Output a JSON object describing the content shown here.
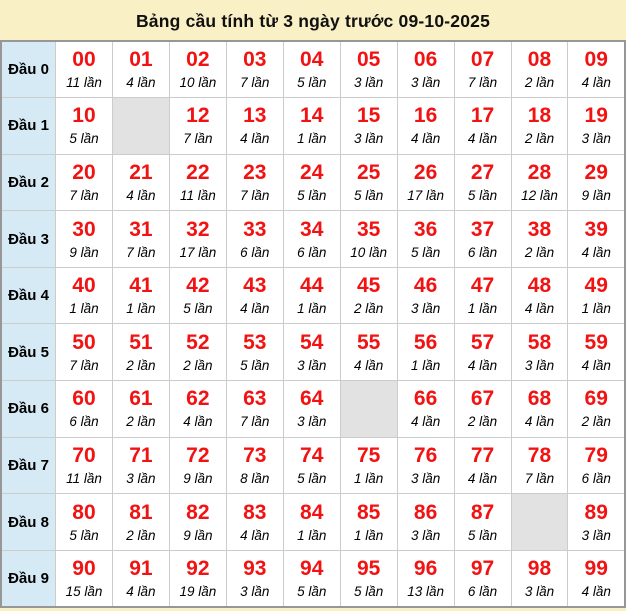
{
  "title": "Bảng cầu tính từ 3 ngày trước 09-10-2025",
  "colors": {
    "page_bg": "#faf0c6",
    "cell_bg": "#ffffff",
    "row_label_bg": "#d6eaf5",
    "empty_cell_bg": "#e2e2e2",
    "number_red": "#f31212",
    "inner_border": "#cccccc",
    "outer_border": "#979797"
  },
  "table": {
    "count_suffix": "lần",
    "rows": [
      {
        "label": "Đầu 0",
        "cells": [
          {
            "number": "00",
            "count": 11
          },
          {
            "number": "01",
            "count": 4
          },
          {
            "number": "02",
            "count": 10
          },
          {
            "number": "03",
            "count": 7
          },
          {
            "number": "04",
            "count": 5
          },
          {
            "number": "05",
            "count": 3
          },
          {
            "number": "06",
            "count": 3
          },
          {
            "number": "07",
            "count": 7
          },
          {
            "number": "08",
            "count": 2
          },
          {
            "number": "09",
            "count": 4
          }
        ]
      },
      {
        "label": "Đầu 1",
        "cells": [
          {
            "number": "10",
            "count": 5
          },
          {
            "empty": true
          },
          {
            "number": "12",
            "count": 7
          },
          {
            "number": "13",
            "count": 4
          },
          {
            "number": "14",
            "count": 1
          },
          {
            "number": "15",
            "count": 3
          },
          {
            "number": "16",
            "count": 4
          },
          {
            "number": "17",
            "count": 4
          },
          {
            "number": "18",
            "count": 2
          },
          {
            "number": "19",
            "count": 3
          }
        ]
      },
      {
        "label": "Đầu 2",
        "cells": [
          {
            "number": "20",
            "count": 7
          },
          {
            "number": "21",
            "count": 4
          },
          {
            "number": "22",
            "count": 11
          },
          {
            "number": "23",
            "count": 7
          },
          {
            "number": "24",
            "count": 5
          },
          {
            "number": "25",
            "count": 5
          },
          {
            "number": "26",
            "count": 17
          },
          {
            "number": "27",
            "count": 5
          },
          {
            "number": "28",
            "count": 12
          },
          {
            "number": "29",
            "count": 9
          }
        ]
      },
      {
        "label": "Đầu 3",
        "cells": [
          {
            "number": "30",
            "count": 9
          },
          {
            "number": "31",
            "count": 7
          },
          {
            "number": "32",
            "count": 17
          },
          {
            "number": "33",
            "count": 6
          },
          {
            "number": "34",
            "count": 6
          },
          {
            "number": "35",
            "count": 10
          },
          {
            "number": "36",
            "count": 5
          },
          {
            "number": "37",
            "count": 6
          },
          {
            "number": "38",
            "count": 2
          },
          {
            "number": "39",
            "count": 4
          }
        ]
      },
      {
        "label": "Đầu 4",
        "cells": [
          {
            "number": "40",
            "count": 1
          },
          {
            "number": "41",
            "count": 1
          },
          {
            "number": "42",
            "count": 5
          },
          {
            "number": "43",
            "count": 4
          },
          {
            "number": "44",
            "count": 1
          },
          {
            "number": "45",
            "count": 2
          },
          {
            "number": "46",
            "count": 3
          },
          {
            "number": "47",
            "count": 1
          },
          {
            "number": "48",
            "count": 4
          },
          {
            "number": "49",
            "count": 1
          }
        ]
      },
      {
        "label": "Đầu 5",
        "cells": [
          {
            "number": "50",
            "count": 7
          },
          {
            "number": "51",
            "count": 2
          },
          {
            "number": "52",
            "count": 2
          },
          {
            "number": "53",
            "count": 5
          },
          {
            "number": "54",
            "count": 3
          },
          {
            "number": "55",
            "count": 4
          },
          {
            "number": "56",
            "count": 1
          },
          {
            "number": "57",
            "count": 4
          },
          {
            "number": "58",
            "count": 3
          },
          {
            "number": "59",
            "count": 4
          }
        ]
      },
      {
        "label": "Đầu 6",
        "cells": [
          {
            "number": "60",
            "count": 6
          },
          {
            "number": "61",
            "count": 2
          },
          {
            "number": "62",
            "count": 4
          },
          {
            "number": "63",
            "count": 7
          },
          {
            "number": "64",
            "count": 3
          },
          {
            "empty": true
          },
          {
            "number": "66",
            "count": 4
          },
          {
            "number": "67",
            "count": 2
          },
          {
            "number": "68",
            "count": 4
          },
          {
            "number": "69",
            "count": 2
          }
        ]
      },
      {
        "label": "Đầu 7",
        "cells": [
          {
            "number": "70",
            "count": 11
          },
          {
            "number": "71",
            "count": 3
          },
          {
            "number": "72",
            "count": 9
          },
          {
            "number": "73",
            "count": 8
          },
          {
            "number": "74",
            "count": 5
          },
          {
            "number": "75",
            "count": 1
          },
          {
            "number": "76",
            "count": 3
          },
          {
            "number": "77",
            "count": 4
          },
          {
            "number": "78",
            "count": 7
          },
          {
            "number": "79",
            "count": 6
          }
        ]
      },
      {
        "label": "Đầu 8",
        "cells": [
          {
            "number": "80",
            "count": 5
          },
          {
            "number": "81",
            "count": 2
          },
          {
            "number": "82",
            "count": 9
          },
          {
            "number": "83",
            "count": 4
          },
          {
            "number": "84",
            "count": 1
          },
          {
            "number": "85",
            "count": 1
          },
          {
            "number": "86",
            "count": 3
          },
          {
            "number": "87",
            "count": 5
          },
          {
            "empty": true
          },
          {
            "number": "89",
            "count": 3
          }
        ]
      },
      {
        "label": "Đầu 9",
        "cells": [
          {
            "number": "90",
            "count": 15
          },
          {
            "number": "91",
            "count": 4
          },
          {
            "number": "92",
            "count": 19
          },
          {
            "number": "93",
            "count": 3
          },
          {
            "number": "94",
            "count": 5
          },
          {
            "number": "95",
            "count": 5
          },
          {
            "number": "96",
            "count": 13
          },
          {
            "number": "97",
            "count": 6
          },
          {
            "number": "98",
            "count": 3
          },
          {
            "number": "99",
            "count": 4
          }
        ]
      }
    ]
  }
}
